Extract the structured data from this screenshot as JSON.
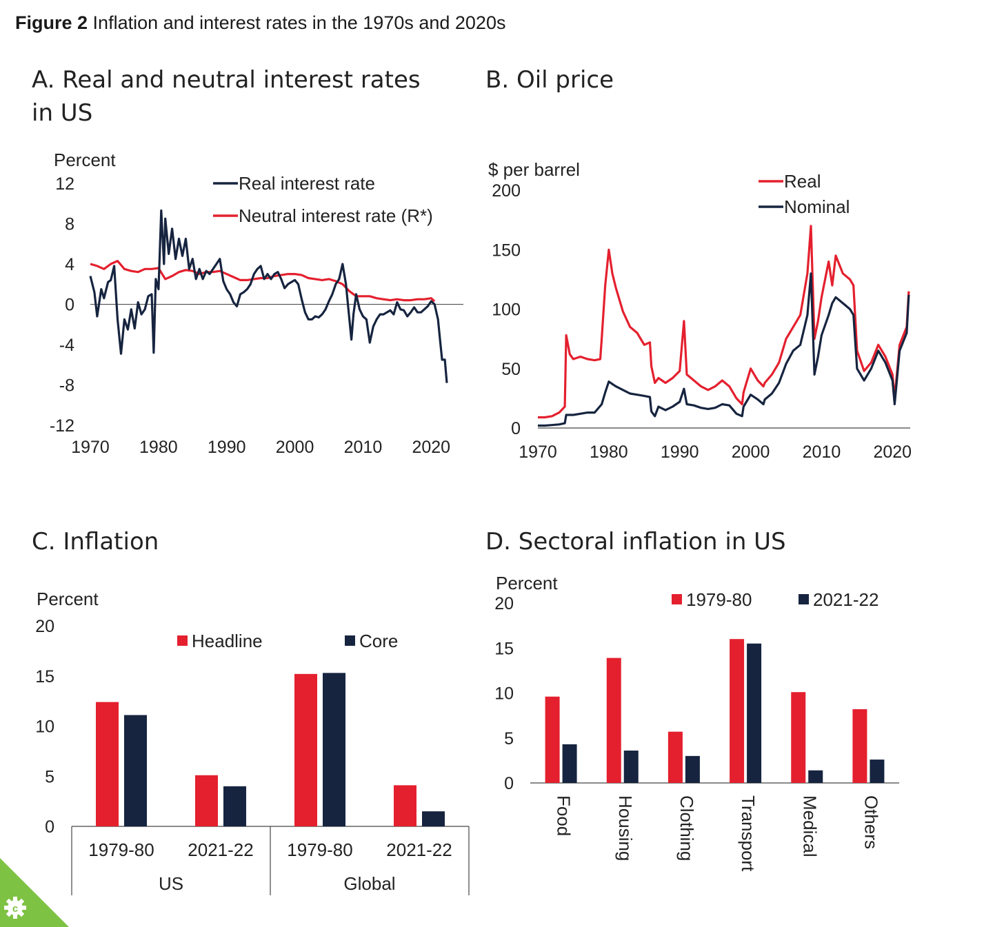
{
  "figure": {
    "label": "Figure 2",
    "title": "Inflation and interest rates in the 1970s and 2020s"
  },
  "colors": {
    "red": "#e4202e",
    "navy": "#16243f",
    "badge": "#7ec243"
  },
  "chart_data": [
    {
      "id": "A",
      "type": "line",
      "title": "A. Real and neutral interest rates in US",
      "ylabel": "Percent",
      "ylim": [
        -12,
        12
      ],
      "yticks": [
        "12",
        "8",
        "4",
        "0",
        "-4",
        "-8",
        "-12"
      ],
      "xticks": [
        "1970",
        "1980",
        "1990",
        "2000",
        "2010",
        "2020"
      ],
      "xlim": [
        1970,
        2022.5
      ],
      "series": [
        {
          "name": "Real interest rate",
          "color": "#16243f",
          "x": [
            1970,
            1970.6,
            1971,
            1971.6,
            1972,
            1972.6,
            1973,
            1973.5,
            1974,
            1974.5,
            1975,
            1975.5,
            1976,
            1976.5,
            1977,
            1977.5,
            1978,
            1978.5,
            1979,
            1979.3,
            1979.6,
            1980,
            1980.4,
            1980.8,
            1981,
            1981.5,
            1982,
            1982.5,
            1983,
            1983.5,
            1984,
            1984.5,
            1985,
            1985.5,
            1986,
            1986.5,
            1987,
            1987.5,
            1988,
            1988.5,
            1989,
            1989.5,
            1990,
            1990.5,
            1991,
            1991.5,
            1992,
            1992.5,
            1993,
            1993.5,
            1994,
            1994.5,
            1995,
            1995.5,
            1996,
            1996.5,
            1997,
            1997.5,
            1998,
            1998.5,
            1999,
            1999.5,
            2000,
            2000.5,
            2001,
            2001.5,
            2002,
            2002.5,
            2003,
            2003.5,
            2004,
            2004.5,
            2005,
            2005.5,
            2006,
            2006.5,
            2007,
            2007.5,
            2008,
            2008.3,
            2008.6,
            2009,
            2009.5,
            2010,
            2010.5,
            2011,
            2011.5,
            2012,
            2012.5,
            2013,
            2013.5,
            2014,
            2014.5,
            2015,
            2015.5,
            2016,
            2016.5,
            2017,
            2017.5,
            2018,
            2018.5,
            2019,
            2019.5,
            2020,
            2020.5,
            2021,
            2021.3,
            2021.6,
            2022,
            2022.3
          ],
          "y": [
            2.8,
            1.2,
            -1.2,
            1.5,
            0.6,
            2.2,
            2.4,
            3.8,
            -1.5,
            -4.9,
            -1.5,
            -2.5,
            -0.5,
            -2.4,
            0.2,
            -1,
            -0.5,
            0.8,
            1.0,
            -4.8,
            2.5,
            1.5,
            9.3,
            4.0,
            8.5,
            5.0,
            7.5,
            4.5,
            6.5,
            4.8,
            6.5,
            3.5,
            4.5,
            2.5,
            3.5,
            2.5,
            3.3,
            3.0,
            3.5,
            4.0,
            4.5,
            2.3,
            1.5,
            1.0,
            0.2,
            -0.2,
            1.0,
            1.2,
            1.5,
            2.0,
            3.0,
            3.5,
            3.8,
            2.5,
            3.0,
            2.5,
            3.0,
            3.2,
            2.5,
            1.6,
            2.0,
            2.2,
            2.4,
            2.0,
            0.5,
            -0.8,
            -1.5,
            -1.5,
            -1.2,
            -1.3,
            -1.0,
            -0.5,
            0.3,
            1.0,
            2.0,
            2.5,
            4.0,
            2.0,
            -1.5,
            -3.5,
            -1.0,
            1.0,
            -0.5,
            -1.2,
            -1.5,
            -3.8,
            -2.2,
            -1.5,
            -1.0,
            -1.0,
            -0.8,
            -0.6,
            -1.0,
            0.2,
            -0.5,
            -0.6,
            -1.2,
            -0.8,
            -0.3,
            -0.8,
            -0.8,
            -0.5,
            -0.2,
            0.3,
            0.0,
            -1.5,
            -3.5,
            -5.5,
            -5.5,
            -7.8
          ]
        },
        {
          "name": "Neutral interest rate (R*)",
          "color": "#e4202e",
          "x": [
            1970,
            1971,
            1972,
            1973,
            1974,
            1975,
            1976,
            1977,
            1978,
            1979,
            1980,
            1981,
            1982,
            1983,
            1984,
            1985,
            1986,
            1987,
            1988,
            1989,
            1990,
            1991,
            1992,
            1993,
            1994,
            1995,
            1996,
            1997,
            1998,
            1999,
            2000,
            2001,
            2002,
            2003,
            2004,
            2005,
            2006,
            2007,
            2008,
            2009,
            2010,
            2011,
            2012,
            2013,
            2014,
            2015,
            2016,
            2017,
            2018,
            2019,
            2020,
            2020.5
          ],
          "y": [
            4.0,
            3.8,
            3.5,
            4.0,
            4.3,
            3.5,
            3.3,
            3.2,
            3.5,
            3.5,
            3.6,
            2.5,
            2.8,
            3.2,
            3.4,
            3.3,
            3.0,
            3.2,
            3.2,
            3.3,
            3.0,
            2.7,
            2.4,
            2.4,
            2.5,
            2.6,
            2.6,
            2.8,
            2.9,
            3.0,
            3.0,
            2.9,
            2.6,
            2.5,
            2.4,
            2.5,
            2.3,
            2.0,
            1.3,
            0.8,
            0.8,
            0.8,
            0.6,
            0.5,
            0.4,
            0.5,
            0.4,
            0.4,
            0.5,
            0.5,
            0.6,
            0.3
          ]
        }
      ]
    },
    {
      "id": "B",
      "type": "line",
      "title": "B. Oil price",
      "ylabel": "$ per barrel",
      "ylim": [
        0,
        200
      ],
      "yticks": [
        "200",
        "150",
        "100",
        "50",
        "0"
      ],
      "xticks": [
        "1970",
        "1980",
        "1990",
        "2000",
        "2010",
        "2020"
      ],
      "xlim": [
        1970,
        2022.5
      ],
      "series": [
        {
          "name": "Real",
          "color": "#e4202e",
          "x": [
            1970,
            1971,
            1972,
            1973,
            1973.8,
            1974,
            1974.5,
            1975,
            1976,
            1977,
            1978,
            1978.8,
            1979,
            1979.5,
            1980,
            1980.5,
            1981,
            1982,
            1983,
            1984,
            1985,
            1985.8,
            1986,
            1986.5,
            1987,
            1988,
            1989,
            1990,
            1990.6,
            1991,
            1992,
            1993,
            1994,
            1995,
            1996,
            1997,
            1998,
            1998.8,
            1999,
            2000,
            2001,
            2001.8,
            2002,
            2003,
            2004,
            2005,
            2006,
            2007,
            2008,
            2008.5,
            2009,
            2009.5,
            2010,
            2011,
            2011.5,
            2012,
            2013,
            2014,
            2014.5,
            2015,
            2016,
            2017,
            2018,
            2019,
            2020,
            2020.3,
            2021,
            2022,
            2022.3
          ],
          "y": [
            9,
            9,
            10,
            13,
            18,
            78,
            62,
            58,
            60,
            58,
            57,
            58,
            75,
            120,
            150,
            130,
            118,
            98,
            85,
            80,
            70,
            72,
            52,
            38,
            42,
            38,
            42,
            48,
            90,
            45,
            40,
            35,
            32,
            35,
            40,
            35,
            25,
            20,
            30,
            50,
            40,
            35,
            38,
            45,
            55,
            75,
            85,
            95,
            130,
            170,
            75,
            90,
            110,
            140,
            120,
            145,
            130,
            125,
            120,
            65,
            48,
            55,
            70,
            60,
            45,
            25,
            70,
            85,
            115
          ]
        },
        {
          "name": "Nominal",
          "color": "#16243f",
          "x": [
            1970,
            1971,
            1972,
            1973,
            1973.8,
            1974,
            1975,
            1976,
            1977,
            1978,
            1979,
            1979.5,
            1980,
            1980.5,
            1981,
            1982,
            1983,
            1984,
            1985,
            1985.8,
            1986,
            1986.5,
            1987,
            1988,
            1989,
            1990,
            1990.6,
            1991,
            1992,
            1993,
            1994,
            1995,
            1996,
            1997,
            1998,
            1998.8,
            1999,
            2000,
            2001,
            2001.8,
            2002,
            2003,
            2004,
            2005,
            2006,
            2007,
            2008,
            2008.5,
            2009,
            2009.5,
            2010,
            2011,
            2011.5,
            2012,
            2013,
            2014,
            2014.5,
            2015,
            2016,
            2017,
            2018,
            2019,
            2020,
            2020.3,
            2021,
            2022,
            2022.3
          ],
          "y": [
            2,
            2,
            2.5,
            3,
            4,
            11,
            11,
            12,
            13,
            13,
            20,
            30,
            39,
            37,
            35,
            32,
            29,
            28,
            27,
            26,
            14,
            10,
            18,
            15,
            18,
            22,
            33,
            20,
            19,
            17,
            16,
            17,
            20,
            19,
            12,
            10,
            18,
            28,
            24,
            20,
            24,
            29,
            38,
            54,
            65,
            70,
            95,
            130,
            45,
            60,
            78,
            95,
            105,
            110,
            105,
            100,
            95,
            50,
            40,
            50,
            65,
            55,
            40,
            20,
            65,
            80,
            112
          ]
        }
      ]
    },
    {
      "id": "C",
      "type": "bar",
      "title": "C. Inflation",
      "ylabel": "Percent",
      "ylim": [
        0,
        20
      ],
      "yticks": [
        "20",
        "15",
        "10",
        "5",
        "0"
      ],
      "categories": [
        "1979-80",
        "2021-22",
        "1979-80",
        "2021-22"
      ],
      "groups": [
        "US",
        "Global"
      ],
      "series": [
        {
          "name": "Headline",
          "color": "#e4202e",
          "values": [
            12.4,
            5.1,
            15.2,
            4.1
          ]
        },
        {
          "name": "Core",
          "color": "#16243f",
          "values": [
            11.1,
            4.0,
            15.3,
            1.5
          ]
        }
      ]
    },
    {
      "id": "D",
      "type": "bar",
      "title": "D. Sectoral inflation in US",
      "ylabel": "Percent",
      "ylim": [
        0,
        20
      ],
      "yticks": [
        "20",
        "15",
        "10",
        "5",
        "0"
      ],
      "categories": [
        "Food",
        "Housing",
        "Clothing",
        "Transport",
        "Medical",
        "Others"
      ],
      "series": [
        {
          "name": "1979-80",
          "color": "#e4202e",
          "values": [
            9.6,
            13.9,
            5.7,
            16.0,
            10.1,
            8.2
          ]
        },
        {
          "name": "2021-22",
          "color": "#16243f",
          "values": [
            4.3,
            3.6,
            3.0,
            15.5,
            1.4,
            2.6
          ]
        }
      ]
    }
  ]
}
